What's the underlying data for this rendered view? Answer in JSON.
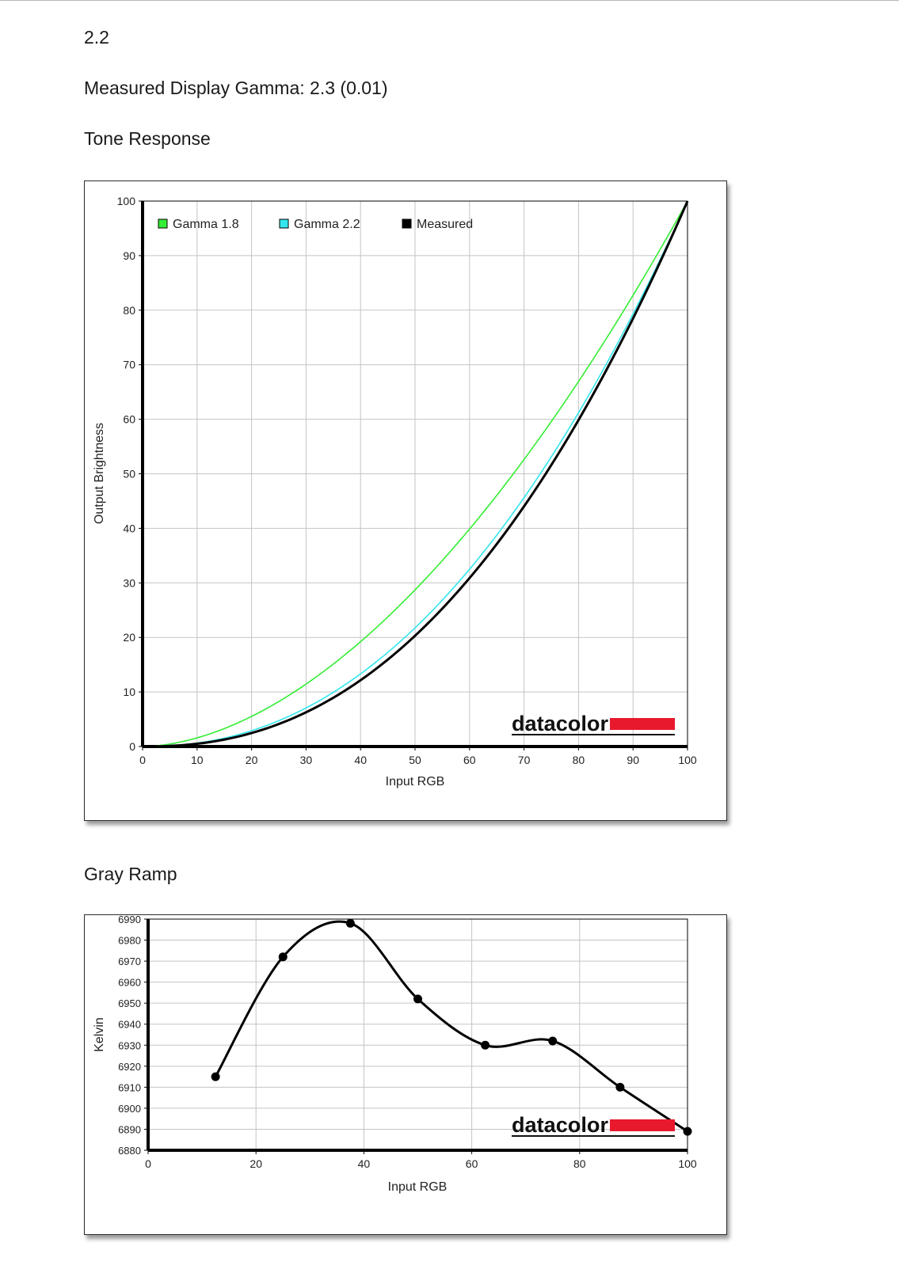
{
  "heading": {
    "target_gamma": "2.2",
    "measured_gamma": "Measured Display Gamma: 2.3 (0.01)",
    "tone_title": "Tone Response",
    "gray_title": "Gray Ramp"
  },
  "logo_text": "datacolor",
  "colors": {
    "gamma18": "#33ee33",
    "gamma22": "#33e6ee",
    "measured": "#000000",
    "logo_red": "#e8192c",
    "grid": "#c4c4c4"
  },
  "chart_data": [
    {
      "type": "line",
      "title": "",
      "xlabel": "Input RGB",
      "ylabel": "Output Brightness",
      "xlim": [
        0,
        100
      ],
      "ylim": [
        0,
        100
      ],
      "x_ticks": [
        0,
        10,
        20,
        30,
        40,
        50,
        60,
        70,
        80,
        90,
        100
      ],
      "y_ticks": [
        0,
        10,
        20,
        30,
        40,
        50,
        60,
        70,
        80,
        90,
        100
      ],
      "grid": true,
      "legend": "top-left",
      "series": [
        {
          "name": "Gamma 1.8",
          "color": "#33ee33",
          "gamma": 1.8,
          "x": [
            0,
            10,
            20,
            30,
            40,
            50,
            60,
            70,
            80,
            90,
            100
          ],
          "y": [
            0,
            1.6,
            5.5,
            11.5,
            19.2,
            28.7,
            39.8,
            52.6,
            66.9,
            82.7,
            100
          ]
        },
        {
          "name": "Gamma 2.2",
          "color": "#33e6ee",
          "gamma": 2.2,
          "x": [
            0,
            10,
            20,
            30,
            40,
            50,
            60,
            70,
            80,
            90,
            100
          ],
          "y": [
            0,
            0.6,
            2.9,
            7.1,
            13.3,
            21.8,
            32.5,
            45.6,
            61.2,
            79.3,
            100
          ]
        },
        {
          "name": "Measured",
          "color": "#000000",
          "gamma": 2.3,
          "x": [
            0,
            10,
            20,
            30,
            40,
            50,
            60,
            70,
            80,
            90,
            100
          ],
          "y": [
            0,
            0.8,
            3.2,
            6.9,
            12.6,
            20.5,
            30.8,
            43.9,
            59.8,
            78.5,
            100
          ]
        }
      ]
    },
    {
      "type": "line",
      "title": "",
      "xlabel": "Input RGB",
      "ylabel": "Kelvin",
      "xlim": [
        0,
        100
      ],
      "ylim": [
        6880,
        6990
      ],
      "x_ticks": [
        0,
        20,
        40,
        60,
        80,
        100
      ],
      "y_ticks": [
        6880,
        6890,
        6900,
        6910,
        6920,
        6930,
        6940,
        6950,
        6960,
        6970,
        6980,
        6990
      ],
      "grid": true,
      "series": [
        {
          "color": "#000000",
          "x": [
            12.5,
            25,
            37.5,
            50,
            62.5,
            75,
            87.5,
            100
          ],
          "y": [
            6915,
            6972,
            6988,
            6952,
            6930,
            6932,
            6910,
            6889
          ]
        }
      ]
    }
  ]
}
